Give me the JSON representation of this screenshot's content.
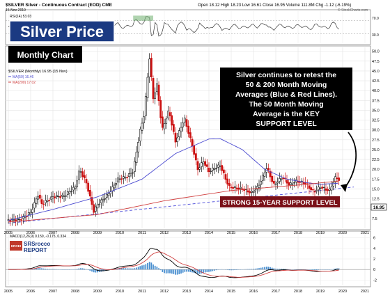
{
  "header": {
    "symbol_line": "$SILVER Silver - Continuous Contract (EOD) CME",
    "date": "15-Nov-2019",
    "ohlc": "Open 18.12 High 18.23 Low 16.61 Close 16.95 Volume 111.8M Chg -1.12 (-6.19%)",
    "watermark": "© StockCharts.com"
  },
  "title_box": {
    "title": "Silver Price",
    "subtitle": "Monthly Chart"
  },
  "rsi": {
    "label": "RSI(14) 53.03",
    "levels": [
      "70.0",
      "30.0"
    ]
  },
  "legend": {
    "series_label": "$SILVER (Monthly) 16.95 (15 Nov)",
    "ma50_label": "MA(50) 16.46",
    "ma200_label": "MA(200) 17.02"
  },
  "callout": {
    "line1": "Silver continues to retest the",
    "line2": "50 & 200 Month Moving",
    "line3": "Averages (Blue & Red Lines).",
    "line4": "The 50 Month Moving",
    "line5": "Average is the KEY",
    "line6": "SUPPORT LEVEL"
  },
  "support_banner": "STRONG 15-YEAR SUPPORT LEVEL",
  "price_label": "16.95",
  "macd": {
    "label": "MACD(12,26,9) 0.159, -0.175, 0.334",
    "ticks": [
      "6",
      "4",
      "2",
      "0",
      "-2"
    ]
  },
  "logo": {
    "badge": "EROEI",
    "name1": "SRSrocco",
    "name2": "REPORT"
  },
  "colors": {
    "title_bg": "#1b3a82",
    "candle_up": "#111111",
    "candle_down": "#cc1111",
    "ma50": "#4a4ad0",
    "ma200": "#d04040",
    "support_line": "#5a5adc",
    "callout_bg": "#000000",
    "banner_bg": "#7a1017"
  },
  "chart_data": {
    "type": "candlestick",
    "years": [
      "2005",
      "2006",
      "2007",
      "2008",
      "2009",
      "2010",
      "2011",
      "2012",
      "2013",
      "2014",
      "2015",
      "2016",
      "2017",
      "2018",
      "2019",
      "2020",
      "2021"
    ],
    "y_ticks": [
      7.5,
      10.0,
      12.5,
      15.0,
      17.5,
      20.0,
      22.5,
      25.0,
      27.5,
      30.0,
      32.5,
      35.0,
      37.5,
      40.0,
      42.5,
      45.0,
      47.5,
      50.0
    ],
    "ylim": [
      5,
      51
    ],
    "monthly_close": [
      [
        2005.0,
        7.1
      ],
      [
        2005.5,
        7.2
      ],
      [
        2006.0,
        9.0
      ],
      [
        2006.33,
        13.5
      ],
      [
        2006.5,
        11.2
      ],
      [
        2007.0,
        13.0
      ],
      [
        2007.5,
        13.2
      ],
      [
        2008.0,
        15.5
      ],
      [
        2008.2,
        20.0
      ],
      [
        2008.5,
        16.5
      ],
      [
        2008.83,
        9.3
      ],
      [
        2009.0,
        11.0
      ],
      [
        2009.5,
        13.8
      ],
      [
        2009.92,
        17.5
      ],
      [
        2010.3,
        18.0
      ],
      [
        2010.6,
        19.5
      ],
      [
        2010.92,
        30.0
      ],
      [
        2011.1,
        34.0
      ],
      [
        2011.33,
        48.5
      ],
      [
        2011.5,
        38.0
      ],
      [
        2011.67,
        41.5
      ],
      [
        2011.9,
        30.0
      ],
      [
        2012.2,
        35.0
      ],
      [
        2012.5,
        27.0
      ],
      [
        2012.9,
        33.0
      ],
      [
        2013.25,
        26.0
      ],
      [
        2013.5,
        20.0
      ],
      [
        2013.75,
        22.0
      ],
      [
        2014.0,
        19.5
      ],
      [
        2014.5,
        21.0
      ],
      [
        2014.9,
        15.5
      ],
      [
        2015.5,
        15.0
      ],
      [
        2015.9,
        14.0
      ],
      [
        2016.2,
        15.5
      ],
      [
        2016.6,
        20.5
      ],
      [
        2016.9,
        16.0
      ],
      [
        2017.3,
        18.0
      ],
      [
        2017.6,
        16.0
      ],
      [
        2017.9,
        17.0
      ],
      [
        2018.3,
        16.5
      ],
      [
        2018.7,
        14.2
      ],
      [
        2019.0,
        15.5
      ],
      [
        2019.4,
        14.5
      ],
      [
        2019.7,
        18.2
      ],
      [
        2019.87,
        16.95
      ]
    ],
    "ma50": [
      [
        2005.0,
        7.0
      ],
      [
        2007.0,
        9.8
      ],
      [
        2009.0,
        13.0
      ],
      [
        2011.0,
        17.5
      ],
      [
        2012.5,
        24.0
      ],
      [
        2014.0,
        27.7
      ],
      [
        2014.5,
        27.8
      ],
      [
        2015.5,
        25.0
      ],
      [
        2016.5,
        20.0
      ],
      [
        2017.5,
        17.5
      ],
      [
        2018.5,
        16.5
      ],
      [
        2019.0,
        16.2
      ],
      [
        2019.87,
        16.46
      ]
    ],
    "ma200": [
      [
        2005.0,
        6.6
      ],
      [
        2009.0,
        8.5
      ],
      [
        2012.0,
        12.0
      ],
      [
        2015.0,
        14.6
      ],
      [
        2018.0,
        16.0
      ],
      [
        2019.87,
        17.02
      ]
    ],
    "support_line": [
      [
        2005.0,
        6.3
      ],
      [
        2020.5,
        15.5
      ]
    ],
    "rsi": {
      "ylim": [
        0,
        100
      ],
      "levels": [
        70,
        30
      ]
    },
    "macd": {
      "ylim": [
        -3,
        7
      ],
      "ticks": [
        6,
        4,
        2,
        0,
        -2
      ]
    }
  }
}
